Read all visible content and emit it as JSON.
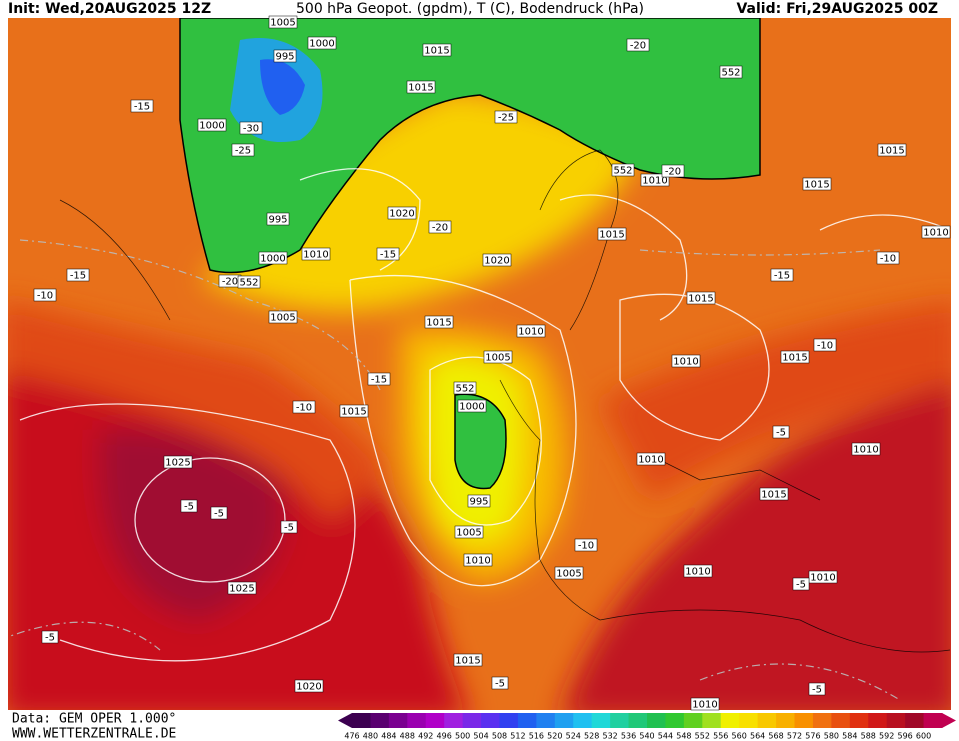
{
  "header": {
    "init": "Init: Wed,20AUG2025 12Z",
    "title": "500 hPa Geopot. (gpdm), T (C), Bodendruck (hPa)",
    "valid": "Valid: Fri,29AUG2025 00Z"
  },
  "footer": {
    "data": "Data: GEM OPER 1.000°",
    "site": "WWW.WETTERZENTRALE.DE"
  },
  "map_labels": [
    "1005",
    "1000",
    "995",
    "1015",
    "1015",
    "-20",
    "552",
    "-15",
    "1000",
    "-30",
    "-25",
    "-25",
    "552",
    "1010",
    "-20",
    "1015",
    "1015",
    "995",
    "1020",
    "-20",
    "1015",
    "1010",
    "1000",
    "1010",
    "-15",
    "1020",
    "-10",
    "-20",
    "552",
    "-15",
    "-15",
    "-10",
    "1005",
    "1015",
    "1015",
    "1010",
    "1005",
    "1010",
    "1015",
    "-10",
    "-15",
    "552",
    "1000",
    "-10",
    "1015",
    "-5",
    "1010",
    "1010",
    "1025",
    "1015",
    "995",
    "-5",
    "-5",
    "-5",
    "1005",
    "-10",
    "1010",
    "1005",
    "1010",
    "1010",
    "-5",
    "1025",
    "-5",
    "1015",
    "-5",
    "1020",
    "-5",
    "1010"
  ],
  "colorbar": {
    "values": [
      476,
      480,
      484,
      488,
      492,
      496,
      500,
      504,
      508,
      512,
      516,
      520,
      524,
      528,
      532,
      536,
      540,
      544,
      548,
      552,
      556,
      560,
      564,
      568,
      572,
      576,
      580,
      584,
      588,
      592,
      596,
      600
    ],
    "colors": [
      "#3c0050",
      "#5a0070",
      "#7a0090",
      "#9a00b0",
      "#b000c8",
      "#a020e0",
      "#7a28e8",
      "#5a30f0",
      "#3040f0",
      "#2060f0",
      "#2080f0",
      "#20a0f0",
      "#20c0f0",
      "#20d8d8",
      "#20d0a0",
      "#20c878",
      "#20c050",
      "#30c830",
      "#60d020",
      "#a0e020",
      "#f0f000",
      "#f8e000",
      "#f8c800",
      "#f8b000",
      "#f89000",
      "#f07010",
      "#e85010",
      "#e03010",
      "#d01818",
      "#b81020",
      "#a00828",
      "#c00050"
    ]
  }
}
